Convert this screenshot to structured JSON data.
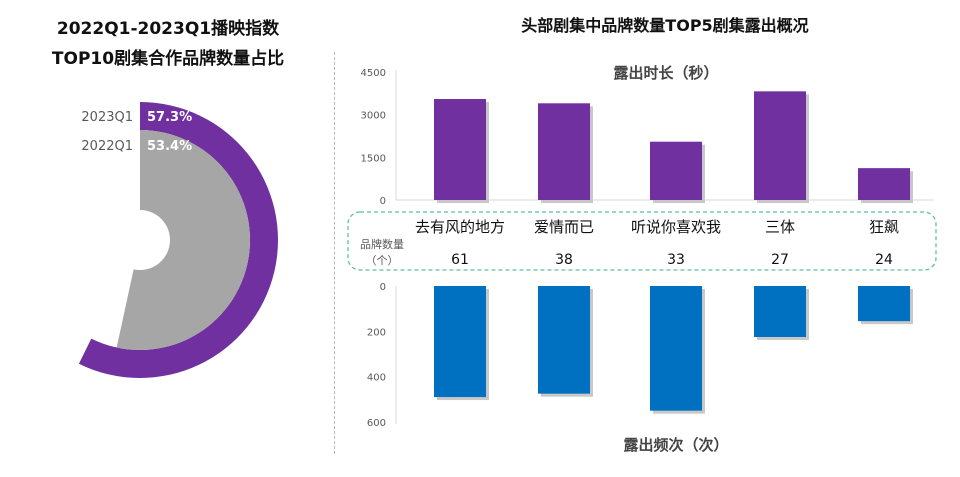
{
  "left_title_line1": "2022Q1-2023Q1播映指数",
  "left_title_line2": "TOP10剧集合作品牌数量占比",
  "right_title": "头部剧集中品牌数量TOP5剧集露出概况",
  "colors": {
    "purple": "#7030a0",
    "gray": "#a6a6a6",
    "blue": "#0070c0",
    "teal": "#5cc0a4"
  },
  "chart_data": [
    {
      "type": "pie",
      "variant": "radial-bar",
      "series": [
        {
          "name": "2023Q1",
          "value": 57.3,
          "label": "57.3%"
        },
        {
          "name": "2022Q1",
          "value": 53.4,
          "label": "53.4%"
        }
      ]
    },
    {
      "type": "bar",
      "categories": [
        "去有风的地方",
        "爱情而已",
        "听说你喜欢我",
        "三体",
        "狂飙"
      ],
      "brand_count_label": "品牌数量",
      "brand_count_unit": "（个）",
      "brand_counts": [
        61,
        38,
        33,
        27,
        24
      ],
      "top": {
        "title": "露出时长（秒）",
        "values": [
          3550,
          3400,
          2050,
          3820,
          1120
        ],
        "ylim": [
          0,
          4500
        ],
        "ticks": [
          0,
          1500,
          3000,
          4500
        ]
      },
      "bottom": {
        "title": "露出频次（次）",
        "values": [
          490,
          475,
          550,
          225,
          155
        ],
        "ylim": [
          0,
          600
        ],
        "ticks": [
          0,
          200,
          400,
          600
        ]
      }
    }
  ]
}
